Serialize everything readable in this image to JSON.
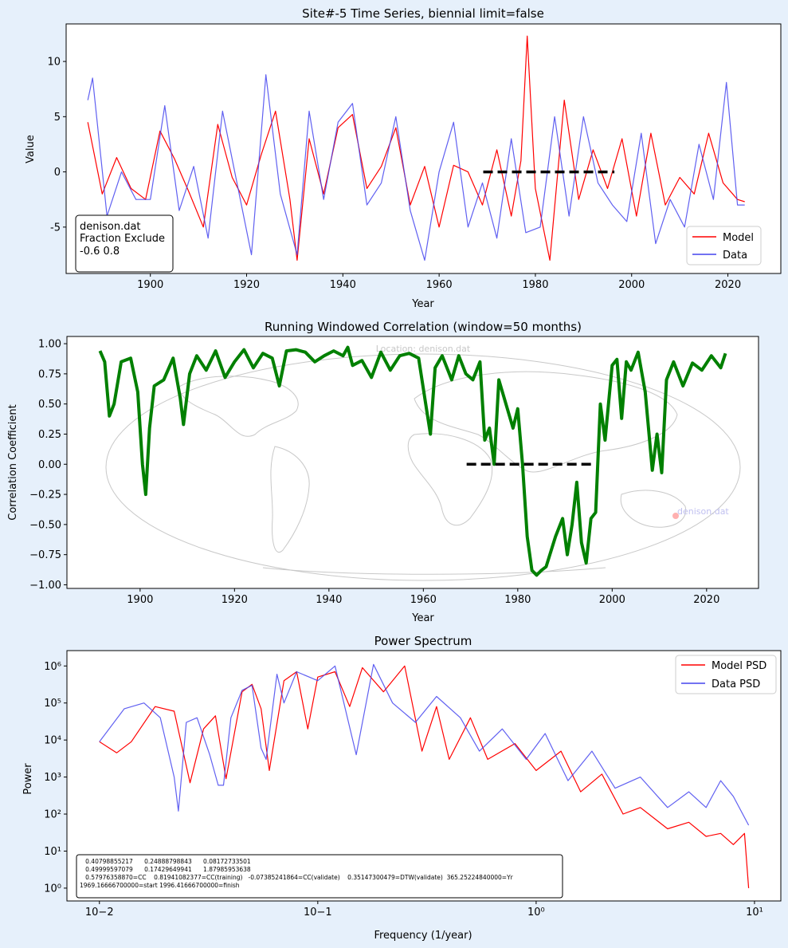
{
  "colors": {
    "background": "#e6f0fb",
    "model": "#ff0000",
    "data": "#4444ee",
    "correlation": "#008000",
    "interval": "#000000",
    "map": "#c8c8c8"
  },
  "chart_data": [
    {
      "type": "line",
      "title": "Site#-5 Time Series, biennial limit=false",
      "xlabel": "Year",
      "ylabel": "Value",
      "xlim": [
        1882.5,
        2031
      ],
      "ylim": [
        -9.2,
        13.4
      ],
      "xticks": [
        1900,
        1920,
        1940,
        1960,
        1980,
        2000,
        2020
      ],
      "yticks": [
        -5,
        0,
        5,
        10
      ],
      "legend": "lower-right",
      "legend_entries": [
        "Model",
        "Data"
      ],
      "annotation": [
        "denison.dat",
        "Fraction Exclude",
        "-0.6 0.8"
      ],
      "interval_segment": {
        "x": [
          1969.17,
          1996.42
        ],
        "y": 0
      },
      "series": [
        {
          "name": "Model",
          "color": "#ff0000",
          "x": [
            1887,
            1890,
            1893,
            1896,
            1899,
            1902,
            1905,
            1908,
            1911,
            1914,
            1917,
            1920,
            1923,
            1926,
            1929,
            1930.5,
            1933,
            1936,
            1939,
            1942,
            1945,
            1948,
            1951,
            1954,
            1957,
            1960,
            1963,
            1966,
            1969,
            1972,
            1975,
            1977,
            1978.3,
            1980,
            1983,
            1986,
            1989,
            1992,
            1995,
            1998,
            2001,
            2004,
            2007,
            2010,
            2013,
            2016,
            2019,
            2022,
            2023.5
          ],
          "values": [
            4.5,
            -2.0,
            1.3,
            -1.5,
            -2.5,
            3.7,
            1.2,
            -1.8,
            -5.0,
            4.3,
            -0.5,
            -3.0,
            1.5,
            5.5,
            -2.5,
            -8.0,
            3.0,
            -2.0,
            4.0,
            5.2,
            -1.5,
            0.5,
            4.0,
            -3.0,
            0.5,
            -5.0,
            0.6,
            0.0,
            -3.0,
            2.0,
            -4.0,
            1.0,
            12.3,
            -1.5,
            -8.0,
            6.5,
            -2.5,
            2.0,
            -1.5,
            3.0,
            -4.0,
            3.5,
            -3.0,
            -0.5,
            -2.0,
            3.5,
            -1.0,
            -2.5,
            -2.7
          ]
        },
        {
          "name": "Data",
          "color": "#4444ee",
          "x": [
            1887,
            1888,
            1891,
            1894,
            1897,
            1900,
            1903,
            1906,
            1909,
            1912,
            1915,
            1918,
            1921,
            1924,
            1927,
            1930.5,
            1933,
            1936,
            1939,
            1942,
            1945,
            1948,
            1951,
            1954,
            1957,
            1960,
            1963,
            1966,
            1969,
            1972,
            1975,
            1978,
            1981,
            1984,
            1987,
            1990,
            1993,
            1996,
            1999,
            2002,
            2005,
            2008,
            2011,
            2014,
            2017,
            2019.7,
            2022,
            2023.5
          ],
          "values": [
            6.5,
            8.5,
            -4.0,
            0.0,
            -2.5,
            -2.5,
            6.0,
            -3.5,
            0.5,
            -6.0,
            5.5,
            -1.0,
            -7.5,
            8.8,
            -2.0,
            -7.5,
            5.5,
            -2.5,
            4.5,
            6.2,
            -3.0,
            -1.0,
            5.0,
            -3.5,
            -8.0,
            0.0,
            4.5,
            -5.0,
            -1.0,
            -6.0,
            3.0,
            -5.5,
            -5.0,
            5.0,
            -4.0,
            5.0,
            -1.0,
            -3.0,
            -4.5,
            3.5,
            -6.5,
            -2.5,
            -5.0,
            2.5,
            -2.5,
            8.1,
            -3.0,
            -3.0
          ]
        }
      ]
    },
    {
      "type": "line",
      "title": "Running Windowed Correlation (window=50 months)",
      "xlabel": "Year",
      "ylabel": "Correlation Coefficient",
      "xlim": [
        1884.5,
        2031
      ],
      "ylim": [
        -1.03,
        1.06
      ],
      "xticks": [
        1900,
        1920,
        1940,
        1960,
        1980,
        2000,
        2020
      ],
      "yticks": [
        -1.0,
        -0.75,
        -0.5,
        -0.25,
        0.0,
        0.25,
        0.5,
        0.75,
        1.0
      ],
      "ytick_labels": [
        "−1.00",
        "−0.75",
        "−0.50",
        "−0.25",
        "0.00",
        "0.25",
        "0.50",
        "0.75",
        "1.00"
      ],
      "map_location_label": "Location: denison.dat",
      "map_marker_label": "denison.dat",
      "interval_segment": {
        "x": [
          1969.17,
          1996.42
        ],
        "y": 0
      },
      "series": [
        {
          "name": "",
          "color": "#008000",
          "x": [
            1891.5,
            1892.5,
            1893.5,
            1894.5,
            1896,
            1898,
            1899.5,
            1900.5,
            1901.2,
            1902,
            1903,
            1905,
            1907,
            1908.5,
            1909.2,
            1910.5,
            1912,
            1914,
            1916,
            1918,
            1920,
            1922,
            1924,
            1926,
            1928,
            1929.5,
            1931,
            1933,
            1935,
            1937,
            1939,
            1941,
            1943,
            1944,
            1945,
            1947,
            1949,
            1951,
            1953,
            1955,
            1957,
            1959,
            1960.5,
            1961.5,
            1962.5,
            1964,
            1966,
            1967.5,
            1969,
            1970.5,
            1972,
            1973,
            1974,
            1975,
            1976,
            1977.5,
            1979,
            1980,
            1981,
            1982,
            1983,
            1984,
            1985,
            1986,
            1988,
            1989.5,
            1990.5,
            1991.5,
            1992.5,
            1993.5,
            1994.5,
            1995.5,
            1996.5,
            1997.5,
            1998.5,
            2000,
            2001,
            2002,
            2003,
            2004,
            2005.5,
            2007,
            2008.5,
            2009.5,
            2010.5,
            2011.5,
            2013,
            2015,
            2017,
            2019,
            2021,
            2023,
            2024
          ],
          "values": [
            0.94,
            0.85,
            0.4,
            0.5,
            0.85,
            0.88,
            0.6,
            0.0,
            -0.25,
            0.3,
            0.65,
            0.7,
            0.88,
            0.55,
            0.33,
            0.75,
            0.9,
            0.78,
            0.94,
            0.72,
            0.85,
            0.95,
            0.8,
            0.92,
            0.88,
            0.65,
            0.94,
            0.95,
            0.93,
            0.85,
            0.9,
            0.94,
            0.9,
            0.97,
            0.82,
            0.86,
            0.72,
            0.93,
            0.78,
            0.9,
            0.92,
            0.88,
            0.5,
            0.25,
            0.8,
            0.9,
            0.7,
            0.9,
            0.75,
            0.7,
            0.85,
            0.2,
            0.3,
            0.0,
            0.7,
            0.5,
            0.3,
            0.46,
            0.0,
            -0.6,
            -0.88,
            -0.92,
            -0.88,
            -0.85,
            -0.6,
            -0.45,
            -0.75,
            -0.5,
            -0.15,
            -0.65,
            -0.82,
            -0.45,
            -0.4,
            0.5,
            0.2,
            0.82,
            0.87,
            0.38,
            0.85,
            0.78,
            0.93,
            0.6,
            -0.05,
            0.25,
            -0.07,
            0.7,
            0.85,
            0.65,
            0.84,
            0.78,
            0.9,
            0.8,
            0.92
          ]
        }
      ]
    },
    {
      "type": "line",
      "title": "Power Spectrum",
      "xlabel": "Frequency (1/year)",
      "ylabel": "Power",
      "xscale": "log",
      "yscale": "log",
      "xlim": [
        0.0071,
        13.2
      ],
      "ylim": [
        0.45,
        2600000
      ],
      "xticks": [
        0.01,
        0.1,
        1,
        10
      ],
      "xtick_labels": [
        "10−2",
        "10−1",
        "10⁰",
        "10¹"
      ],
      "yticks": [
        1,
        10,
        100,
        1000,
        10000,
        100000,
        1000000
      ],
      "ytick_labels": [
        "10⁰",
        "10¹",
        "10²",
        "10³",
        "10⁴",
        "10⁵",
        "10⁶"
      ],
      "legend": "upper-right",
      "legend_entries": [
        "Model PSD",
        "Data PSD"
      ],
      "annotation": [
        "   0.40798855217      0.24888798843      0.08172733501",
        "   0.49999597079      0.17429649941      1.87985953638",
        "   0.57976358870=CC    0.81941082377=CC(training)   -0.07385241864=CC(validate)    0.35147300479=DTW(validate)  365.25224840000=Yr",
        "1969.16666700000=start 1996.41666700000=finish"
      ],
      "series": [
        {
          "name": "Model PSD",
          "color": "#ff0000",
          "x": [
            0.01,
            0.012,
            0.014,
            0.018,
            0.022,
            0.026,
            0.03,
            0.034,
            0.038,
            0.045,
            0.05,
            0.055,
            0.06,
            0.07,
            0.08,
            0.09,
            0.1,
            0.12,
            0.14,
            0.16,
            0.2,
            0.25,
            0.3,
            0.35,
            0.4,
            0.5,
            0.6,
            0.8,
            1.0,
            1.3,
            1.6,
            2.0,
            2.5,
            3.0,
            4.0,
            5.0,
            6.0,
            7.0,
            8.0,
            9.0,
            9.4
          ],
          "values": [
            9000,
            4500,
            9000,
            80000,
            60000,
            700,
            20000,
            45000,
            900,
            200000,
            320000,
            70000,
            1500,
            400000,
            700000,
            20000,
            500000,
            700000,
            80000,
            900000,
            200000,
            1000000,
            5000,
            80000,
            3000,
            40000,
            3000,
            8000,
            1500,
            5000,
            400,
            1200,
            100,
            150,
            40,
            60,
            25,
            30,
            15,
            30,
            1.0
          ]
        },
        {
          "name": "Data PSD",
          "color": "#4444ee",
          "x": [
            0.01,
            0.013,
            0.016,
            0.019,
            0.022,
            0.023,
            0.025,
            0.028,
            0.032,
            0.035,
            0.037,
            0.04,
            0.045,
            0.05,
            0.055,
            0.058,
            0.065,
            0.07,
            0.08,
            0.1,
            0.12,
            0.15,
            0.18,
            0.22,
            0.28,
            0.35,
            0.45,
            0.55,
            0.7,
            0.9,
            1.1,
            1.4,
            1.8,
            2.3,
            3.0,
            4.0,
            5.0,
            6.0,
            7.0,
            8.0,
            9.4
          ],
          "values": [
            9000,
            70000,
            100000,
            40000,
            1000,
            120,
            30000,
            40000,
            4000,
            600,
            600,
            40000,
            220000,
            300000,
            6000,
            3000,
            600000,
            100000,
            700000,
            400000,
            1000000,
            4000,
            1100000,
            100000,
            30000,
            150000,
            40000,
            5000,
            20000,
            3000,
            15000,
            800,
            5000,
            500,
            1000,
            150,
            400,
            150,
            800,
            300,
            50
          ]
        }
      ]
    }
  ]
}
